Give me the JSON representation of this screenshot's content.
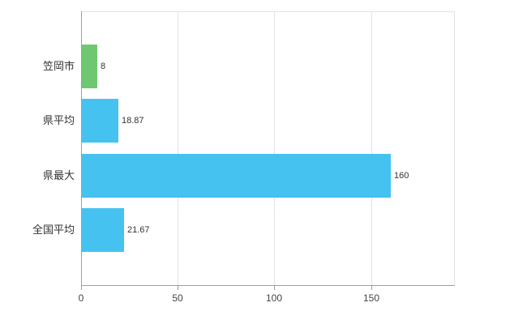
{
  "chart_data": {
    "type": "bar",
    "orientation": "horizontal",
    "title": "",
    "xlabel": "",
    "ylabel": "",
    "categories": [
      "笠岡市",
      "県平均",
      "県最大",
      "全国平均"
    ],
    "values": [
      8,
      18.87,
      160,
      21.67
    ],
    "value_labels": [
      "8",
      "18.87",
      "160",
      "21.67"
    ],
    "bar_colors": [
      "#6ec871",
      "#45c2ef",
      "#45c2ef",
      "#45c2ef"
    ],
    "xlim": [
      0,
      193
    ],
    "xticks": [
      0,
      50,
      100,
      150
    ],
    "xtick_labels": [
      "0",
      "50",
      "100",
      "150"
    ],
    "grid": true,
    "legend": false
  },
  "colors": {
    "background": "#ffffff",
    "grid": "#e3e3e3",
    "axis": "#9e9e9e",
    "text": "#333333",
    "tick_text": "#444444"
  }
}
